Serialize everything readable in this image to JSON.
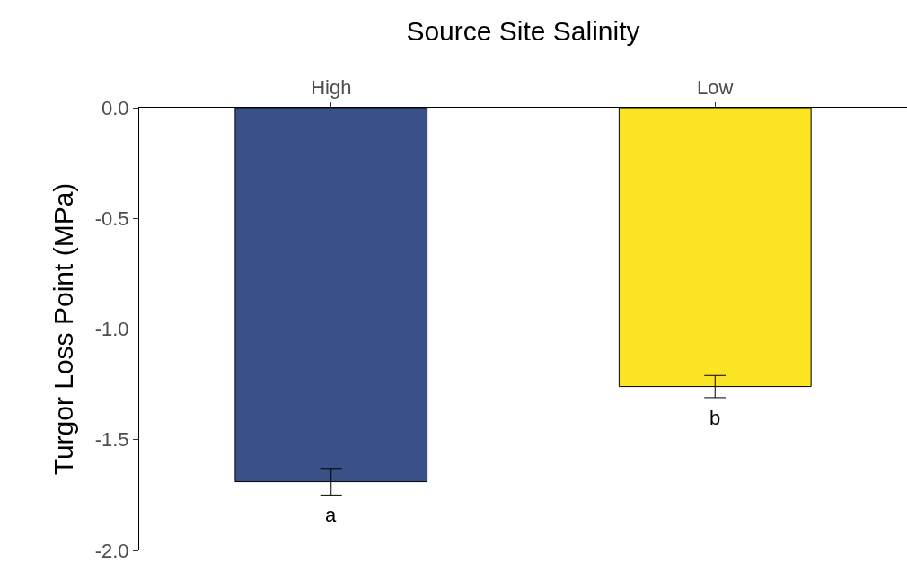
{
  "chart_data": {
    "type": "bar",
    "xlabel": "Source Site Salinity",
    "ylabel": "Turgor Loss Point (MPa)",
    "categories": [
      "High",
      "Low"
    ],
    "values": [
      -1.69,
      -1.26
    ],
    "colors": [
      "#3a5188",
      "#fbe423"
    ],
    "errors": [
      0.06,
      0.05
    ],
    "ylim": [
      -2.0,
      0.0
    ],
    "yticks": [
      {
        "value": -2.0,
        "label": "-2.0"
      },
      {
        "value": -1.5,
        "label": "-1.5"
      },
      {
        "value": -1.0,
        "label": "-1.0"
      },
      {
        "value": -0.5,
        "label": "-0.5"
      },
      {
        "value": 0.0,
        "label": "0.0"
      }
    ],
    "annotations": [
      "a",
      "b"
    ]
  }
}
